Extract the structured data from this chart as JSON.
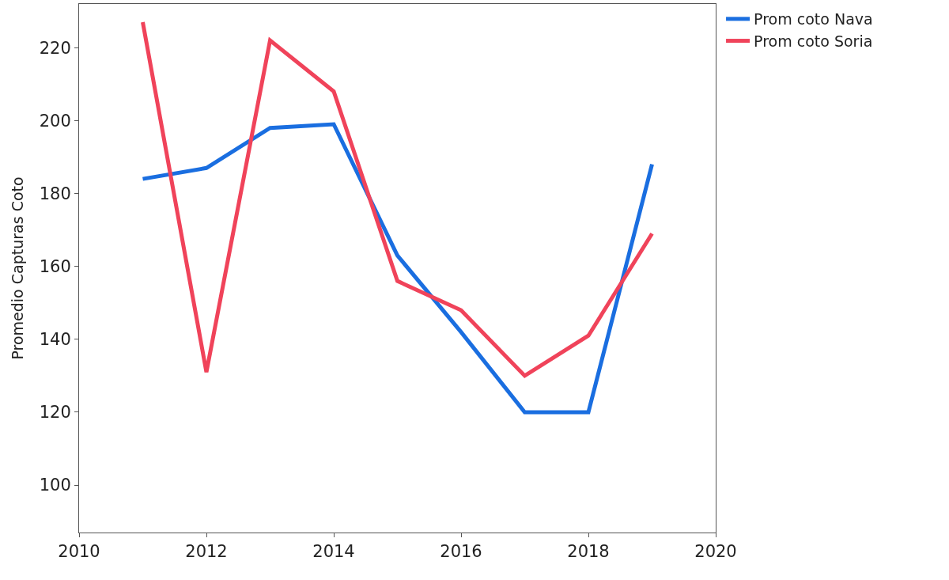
{
  "chart_data": {
    "type": "line",
    "ylabel": "Promedio Capturas Coto",
    "x": [
      2011,
      2012,
      2013,
      2014,
      2015,
      2016,
      2017,
      2018,
      2019
    ],
    "series": [
      {
        "name": "Prom coto Nava",
        "color": "#1a6ee0",
        "values": [
          184,
          187,
          198,
          199,
          163,
          142,
          120,
          120,
          188
        ]
      },
      {
        "name": "Prom coto Soria",
        "color": "#f0435a",
        "values": [
          227,
          131,
          222,
          208,
          156,
          148,
          130,
          141,
          169
        ]
      }
    ],
    "xlim": [
      2010,
      2020
    ],
    "xticks": [
      2010,
      2012,
      2014,
      2016,
      2018,
      2020
    ],
    "ylim": [
      87,
      232
    ],
    "yticks": [
      100,
      120,
      140,
      160,
      180,
      200,
      220
    ],
    "legend": "top right",
    "marker": "none",
    "line_style": "solid"
  }
}
